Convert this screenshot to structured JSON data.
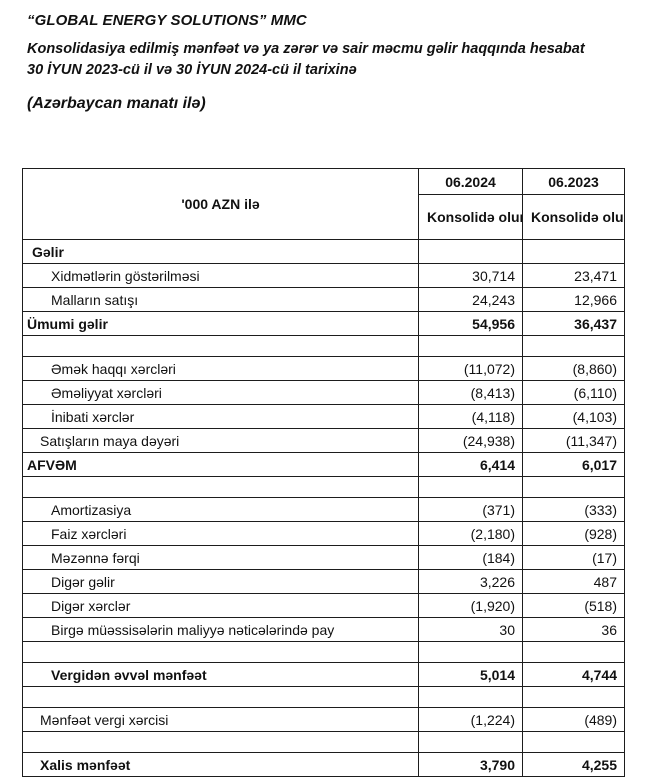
{
  "header": {
    "company": "“GLOBAL ENERGY SOLUTIONS” MMC",
    "report_title": "Konsolidasiya edilmiş mənfəət və ya zərər və sair məcmu gəlir haqqında hesabat 30 İYUN 2023-cü il və 30 İYUN 2024-cü il tarixinə",
    "currency_note": "(Azərbaycan manatı ilə)"
  },
  "table": {
    "unit_label": "'000 AZN ilə",
    "columns": [
      {
        "period": "06.2024",
        "sub": "Konsolidə olunmuş"
      },
      {
        "period": "06.2023",
        "sub": "Konsolidə olunmuş"
      }
    ],
    "rows": [
      {
        "label": "Gəlir",
        "v2024": "",
        "v2023": "",
        "style": "section",
        "indent": 1
      },
      {
        "label": "Xidmətlərin göstərilməsi",
        "v2024": "30,714",
        "v2023": "23,471",
        "style": "",
        "indent": 3
      },
      {
        "label": "Malların satışı",
        "v2024": "24,243",
        "v2023": "12,966",
        "style": "",
        "indent": 3
      },
      {
        "label": "Ümumi gəlir",
        "v2024": "54,956",
        "v2023": "36,437",
        "style": "total",
        "indent": 0
      },
      {
        "label": "",
        "v2024": "",
        "v2023": "",
        "style": "spacer",
        "indent": 0
      },
      {
        "label": "Əmək haqqı xərcləri",
        "v2024": "(11,072)",
        "v2023": "(8,860)",
        "style": "",
        "indent": 3
      },
      {
        "label": "Əməliyyat xərcləri",
        "v2024": "(8,413)",
        "v2023": "(6,110)",
        "style": "",
        "indent": 3
      },
      {
        "label": "İnibati xərclər",
        "v2024": "(4,118)",
        "v2023": "(4,103)",
        "style": "",
        "indent": 3
      },
      {
        "label": "Satışların maya dəyəri",
        "v2024": "(24,938)",
        "v2023": "(11,347)",
        "style": "",
        "indent": 2
      },
      {
        "label": "AFVƏM",
        "v2024": "6,414",
        "v2023": "6,017",
        "style": "total",
        "indent": 0
      },
      {
        "label": "",
        "v2024": "",
        "v2023": "",
        "style": "spacer",
        "indent": 0
      },
      {
        "label": "Amortizasiya",
        "v2024": "(371)",
        "v2023": "(333)",
        "style": "",
        "indent": 3
      },
      {
        "label": "Faiz xərcləri",
        "v2024": "(2,180)",
        "v2023": "(928)",
        "style": "",
        "indent": 3
      },
      {
        "label": "Məzənnə fərqi",
        "v2024": "(184)",
        "v2023": "(17)",
        "style": "",
        "indent": 3
      },
      {
        "label": "Digər gəlir",
        "v2024": "3,226",
        "v2023": "487",
        "style": "",
        "indent": 3
      },
      {
        "label": "Digər xərclər",
        "v2024": "(1,920)",
        "v2023": "(518)",
        "style": "",
        "indent": 3
      },
      {
        "label": "Birgə müəssisələrin maliyyə nəticələrində pay",
        "v2024": "30",
        "v2023": "36",
        "style": "",
        "indent": 3
      },
      {
        "label": "",
        "v2024": "",
        "v2023": "",
        "style": "spacer",
        "indent": 0
      },
      {
        "label": "Vergidən əvvəl mənfəət",
        "v2024": "5,014",
        "v2023": "4,744",
        "style": "total",
        "indent": 3
      },
      {
        "label": "",
        "v2024": "",
        "v2023": "",
        "style": "spacer",
        "indent": 0
      },
      {
        "label": "Mənfəət vergi xərcisi",
        "v2024": "(1,224)",
        "v2023": "(489)",
        "style": "",
        "indent": 2
      },
      {
        "label": "",
        "v2024": "",
        "v2023": "",
        "style": "spacer",
        "indent": 0
      },
      {
        "label": "Xalis mənfəət",
        "v2024": "3,790",
        "v2023": "4,255",
        "style": "total",
        "indent": 2
      }
    ]
  }
}
